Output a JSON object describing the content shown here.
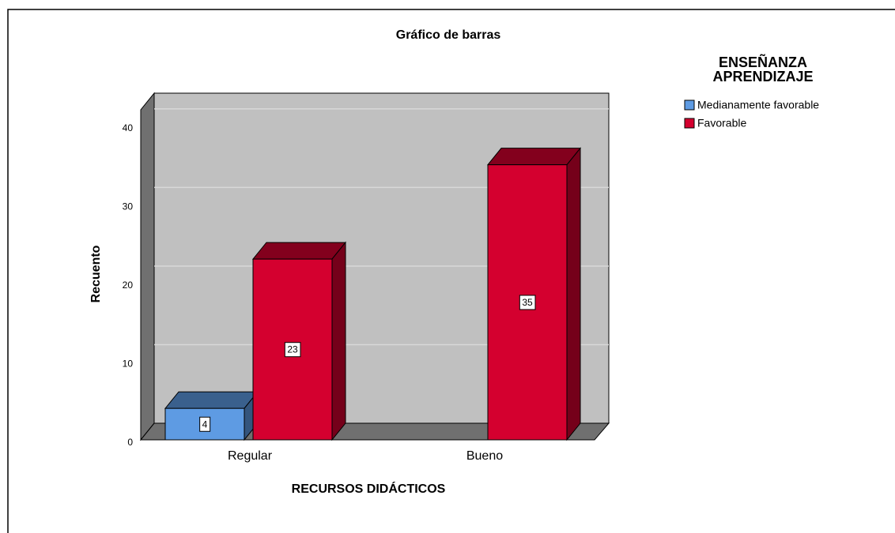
{
  "chart_data": {
    "type": "bar3d",
    "title": "Gráfico de barras",
    "x_label": "RECURSOS DIDÁCTICOS",
    "y_label": "Recuento",
    "legend_title": "ENSEÑANZA APRENDIZAJE",
    "categories": [
      "Regular",
      "Bueno"
    ],
    "series": [
      {
        "name": "Medianamente favorable",
        "color": "#5e9be3",
        "values": [
          4,
          null
        ]
      },
      {
        "name": "Favorable",
        "color": "#d4002f",
        "values": [
          23,
          35
        ]
      }
    ],
    "ylim": [
      0,
      42
    ],
    "yticks": [
      0,
      10,
      20,
      30,
      40
    ],
    "grid": true
  }
}
